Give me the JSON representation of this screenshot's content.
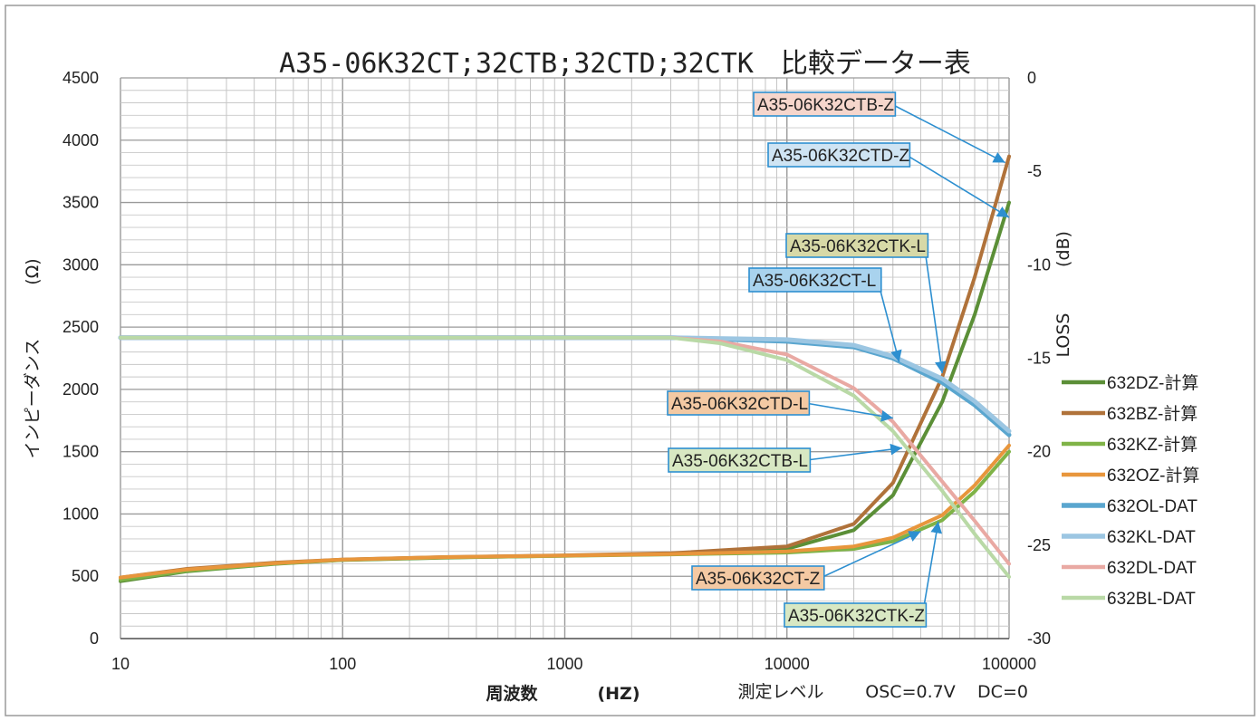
{
  "chart_data": {
    "type": "line",
    "title": "A35-06K32CT;32CTB;32CTD;32CTK　比較データー表",
    "xlabel": "周波数",
    "xlabel_unit": "(HZ)",
    "measure_note": "測定レベル",
    "osc_note": "OSC=0.7V",
    "dc_note": "DC=0",
    "y_left_label": "インピーダンス",
    "y_left_unit": "(Ω)",
    "y_right_label": "LOSS",
    "y_right_unit": "(dB)",
    "x_scale": "log",
    "xlim": [
      10,
      100000
    ],
    "ylim_left": [
      0,
      4500
    ],
    "ylim_right": [
      -30,
      0
    ],
    "grid": true,
    "legend_position": "right",
    "x_ticks": [
      {
        "value": 10,
        "label": "10"
      },
      {
        "value": 100,
        "label": "100"
      },
      {
        "value": 1000,
        "label": "1000"
      },
      {
        "value": 10000,
        "label": "10000"
      },
      {
        "value": 100000,
        "label": "100000"
      }
    ],
    "y_left_ticks": [
      {
        "value": 0,
        "label": "0"
      },
      {
        "value": 500,
        "label": "500"
      },
      {
        "value": 1000,
        "label": "1000"
      },
      {
        "value": 1500,
        "label": "1500"
      },
      {
        "value": 2000,
        "label": "2000"
      },
      {
        "value": 2500,
        "label": "2500"
      },
      {
        "value": 3000,
        "label": "3000"
      },
      {
        "value": 3500,
        "label": "3500"
      },
      {
        "value": 4000,
        "label": "4000"
      },
      {
        "value": 4500,
        "label": "4500"
      }
    ],
    "y_right_ticks": [
      {
        "value": 0,
        "label": "0"
      },
      {
        "value": -5,
        "label": "-5"
      },
      {
        "value": -10,
        "label": "-10"
      },
      {
        "value": -15,
        "label": "-15"
      },
      {
        "value": -20,
        "label": "-20"
      },
      {
        "value": -25,
        "label": "-25"
      },
      {
        "value": -30,
        "label": "-30"
      }
    ],
    "series": [
      {
        "name": "632DZ-計算",
        "axis": "left",
        "color": "#5b8f37",
        "width": 4,
        "x": [
          10,
          20,
          50,
          100,
          300,
          1000,
          3000,
          10000,
          20000,
          30000,
          50000,
          70000,
          100000
        ],
        "y": [
          460,
          540,
          600,
          630,
          650,
          665,
          680,
          720,
          870,
          1150,
          1900,
          2600,
          3500
        ]
      },
      {
        "name": "632BZ-計算",
        "axis": "left",
        "color": "#b0723a",
        "width": 4,
        "x": [
          10,
          20,
          50,
          100,
          300,
          1000,
          3000,
          10000,
          20000,
          30000,
          50000,
          70000,
          100000
        ],
        "y": [
          490,
          560,
          610,
          635,
          655,
          668,
          685,
          740,
          920,
          1250,
          2100,
          2900,
          3870
        ]
      },
      {
        "name": "632KZ-計算",
        "axis": "left",
        "color": "#7fb347",
        "width": 4,
        "x": [
          10,
          20,
          50,
          100,
          300,
          1000,
          3000,
          10000,
          20000,
          30000,
          50000,
          70000,
          100000
        ],
        "y": [
          470,
          545,
          602,
          632,
          652,
          664,
          675,
          690,
          720,
          780,
          950,
          1180,
          1500
        ]
      },
      {
        "name": "632OZ-計算",
        "axis": "left",
        "color": "#e8963c",
        "width": 4,
        "x": [
          10,
          20,
          50,
          100,
          300,
          1000,
          3000,
          10000,
          20000,
          30000,
          50000,
          70000,
          100000
        ],
        "y": [
          490,
          555,
          605,
          634,
          654,
          666,
          678,
          700,
          740,
          810,
          990,
          1230,
          1550
        ]
      },
      {
        "name": "632OL-DAT",
        "axis": "right",
        "color": "#5aa6cf",
        "width": 5,
        "x": [
          10,
          100,
          1000,
          3000,
          10000,
          20000,
          30000,
          50000,
          70000,
          100000
        ],
        "y": [
          -13.9,
          -13.9,
          -13.9,
          -13.9,
          -14.1,
          -14.4,
          -15.0,
          -16.3,
          -17.5,
          -19.1
        ]
      },
      {
        "name": "632KL-DAT",
        "axis": "right",
        "color": "#9cc6e2",
        "width": 5,
        "x": [
          10,
          100,
          1000,
          3000,
          10000,
          20000,
          30000,
          50000,
          70000,
          100000
        ],
        "y": [
          -13.9,
          -13.9,
          -13.9,
          -13.9,
          -14.0,
          -14.3,
          -14.9,
          -16.1,
          -17.3,
          -18.9
        ]
      },
      {
        "name": "632DL-DAT",
        "axis": "right",
        "color": "#e9a9a3",
        "width": 4,
        "x": [
          10,
          100,
          1000,
          3000,
          5000,
          10000,
          20000,
          30000,
          50000,
          70000,
          100000
        ],
        "y": [
          -13.9,
          -13.9,
          -13.9,
          -13.9,
          -14.1,
          -14.8,
          -16.6,
          -18.4,
          -21.6,
          -23.7,
          -26.0
        ]
      },
      {
        "name": "632BL-DAT",
        "axis": "right",
        "color": "#b9d9a6",
        "width": 4,
        "x": [
          10,
          100,
          1000,
          3000,
          5000,
          10000,
          20000,
          30000,
          50000,
          70000,
          100000
        ],
        "y": [
          -13.9,
          -13.9,
          -13.9,
          -13.9,
          -14.2,
          -15.1,
          -17.0,
          -18.9,
          -22.1,
          -24.4,
          -26.7
        ]
      }
    ],
    "annotations": [
      {
        "text": "A35-06K32CTB-Z",
        "bg": "#f6d6cc",
        "border": "#2d8fd0",
        "target": {
          "x": 96000,
          "y": 3820,
          "axis": "left"
        }
      },
      {
        "text": "A35-06K32CTD-Z",
        "bg": "#cfe4f3",
        "border": "#2d8fd0",
        "target": {
          "x": 100000,
          "y": 3380,
          "axis": "left"
        }
      },
      {
        "text": "A35-06K32CTK-L",
        "bg": "#d7d9a7",
        "border": "#2d8fd0",
        "target": {
          "x": 50000,
          "y": 2130,
          "axis": "left"
        }
      },
      {
        "text": "A35-06K32CT-L",
        "bg": "#a9d3ee",
        "border": "#2d8fd0",
        "target": {
          "x": 32000,
          "y": 2220,
          "axis": "left"
        }
      },
      {
        "text": "A35-06K32CTD-L",
        "bg": "#f3c9a3",
        "border": "#2d8fd0",
        "target": {
          "x": 30000,
          "y": 1770,
          "axis": "left"
        }
      },
      {
        "text": "A35-06K32CTB-L",
        "bg": "#d8e8c3",
        "border": "#2d8fd0",
        "target": {
          "x": 33000,
          "y": 1530,
          "axis": "left"
        }
      },
      {
        "text": "A35-06K32CT-Z",
        "bg": "#f4c9a3",
        "border": "#2d8fd0",
        "target": {
          "x": 40000,
          "y": 860,
          "axis": "left"
        }
      },
      {
        "text": "A35-06K32CTK-Z",
        "bg": "#d8e8c3",
        "border": "#2d8fd0",
        "target": {
          "x": 48000,
          "y": 940,
          "axis": "left"
        }
      }
    ]
  }
}
